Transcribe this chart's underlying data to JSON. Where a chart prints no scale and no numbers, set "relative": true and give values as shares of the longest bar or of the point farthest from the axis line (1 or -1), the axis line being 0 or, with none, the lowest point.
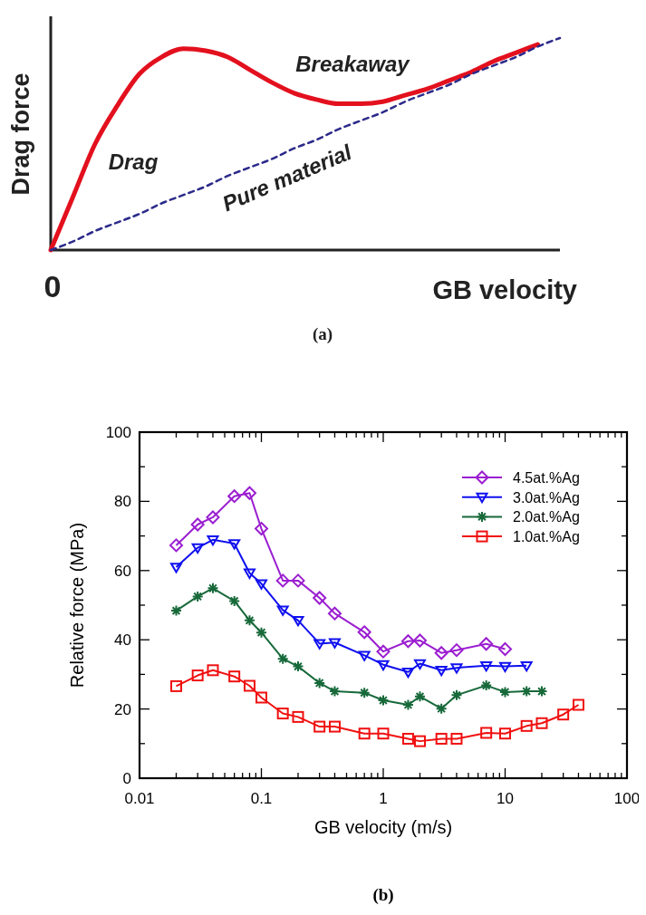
{
  "chart_data": [
    {
      "type": "line",
      "relative": true,
      "ylabel": "Drag force",
      "xlabel": "GB velocity",
      "categories": [
        null,
        null,
        null,
        null,
        null,
        null,
        null,
        null,
        null,
        null,
        null,
        null,
        null,
        null,
        null,
        null,
        null,
        null,
        null,
        null,
        null,
        null,
        null,
        null
      ],
      "series": [
        {
          "color": "#e3101e",
          "line_style": "solid",
          "values": [
            0,
            0.25,
            0.5,
            0.68,
            0.83,
            0.91,
            0.95,
            0.94,
            0.91,
            0.85,
            0.79,
            0.74,
            0.71,
            0.69,
            0.69,
            0.7,
            0.73,
            0.76,
            0.8,
            0.84,
            0.89,
            0.93,
            0.97,
            null
          ]
        },
        {
          "color": "#2b2a8a",
          "line_style": "dashed",
          "values": [
            0,
            0.04,
            0.09,
            0.13,
            0.17,
            0.22,
            0.26,
            0.3,
            0.35,
            0.39,
            0.43,
            0.48,
            0.52,
            0.57,
            0.61,
            0.65,
            0.7,
            0.74,
            0.78,
            0.83,
            0.87,
            0.91,
            0.96,
            1
          ]
        }
      ],
      "annotations": [
        "Drag",
        "Breakaway",
        "Pure material",
        "0",
        "(a)"
      ]
    },
    {
      "type": "line",
      "xlabel": "GB velocity (m/s)",
      "ylabel": "Relative force (MPa)",
      "log": "x",
      "grid": false,
      "legend": "top right",
      "xlim": [
        0.01,
        100
      ],
      "ylim": [
        0,
        100
      ],
      "xticks": [
        0.01,
        {
          "value": 0.02,
          "label": null
        },
        {
          "value": 0.03,
          "label": null
        },
        {
          "value": 0.04,
          "label": null
        },
        {
          "value": 0.05,
          "label": null
        },
        {
          "value": 0.06,
          "label": null
        },
        {
          "value": 0.07,
          "label": null
        },
        {
          "value": 0.08,
          "label": null
        },
        {
          "value": 0.09,
          "label": null
        },
        0.1,
        {
          "value": 0.2,
          "label": null
        },
        {
          "value": 0.3,
          "label": null
        },
        {
          "value": 0.4,
          "label": null
        },
        {
          "value": 0.5,
          "label": null
        },
        {
          "value": 0.6,
          "label": null
        },
        {
          "value": 0.7,
          "label": null
        },
        {
          "value": 0.8,
          "label": null
        },
        {
          "value": 0.9,
          "label": null
        },
        1,
        {
          "value": 2,
          "label": null
        },
        {
          "value": 3,
          "label": null
        },
        {
          "value": 4,
          "label": null
        },
        {
          "value": 5,
          "label": null
        },
        {
          "value": 6,
          "label": null
        },
        {
          "value": 7,
          "label": null
        },
        {
          "value": 8,
          "label": null
        },
        {
          "value": 9,
          "label": null
        },
        10,
        {
          "value": 20,
          "label": null
        },
        {
          "value": 30,
          "label": null
        },
        {
          "value": 40,
          "label": null
        },
        {
          "value": 50,
          "label": null
        },
        {
          "value": 60,
          "label": null
        },
        {
          "value": 70,
          "label": null
        },
        {
          "value": 80,
          "label": null
        },
        {
          "value": 90,
          "label": null
        },
        100
      ],
      "yticks": [
        0,
        {
          "value": 10,
          "label": null
        },
        20,
        {
          "value": 30,
          "label": null
        },
        40,
        {
          "value": 50,
          "label": null
        },
        60,
        {
          "value": 70,
          "label": null
        },
        80,
        {
          "value": 90,
          "label": null
        },
        100
      ],
      "series": [
        {
          "name": "4.5at.%Ag",
          "color": "#9b1ed0",
          "marker": "diamond",
          "x": [
            0.02,
            0.03,
            0.04,
            0.06,
            0.08,
            0.1,
            0.15,
            0.2,
            0.3,
            0.4,
            0.7,
            1,
            1.6,
            2,
            3,
            4,
            7,
            10
          ],
          "values": [
            67.3,
            73.3,
            75.4,
            81.5,
            82.4,
            72.1,
            57.1,
            57.1,
            52.1,
            47.6,
            42.2,
            36.6,
            39.6,
            39.8,
            36.2,
            37.0,
            38.8,
            37.3
          ]
        },
        {
          "name": "3.0at.%Ag",
          "color": "#1010f0",
          "marker": "triangle",
          "x": [
            0.02,
            0.03,
            0.04,
            0.06,
            0.08,
            0.1,
            0.15,
            0.2,
            0.3,
            0.4,
            0.7,
            1,
            1.6,
            2,
            3,
            4,
            7,
            10,
            15
          ],
          "values": [
            61.0,
            66.6,
            68.9,
            67.8,
            59.3,
            56.2,
            48.6,
            45.6,
            38.9,
            39.2,
            35.5,
            32.8,
            30.7,
            33.1,
            31.2,
            31.9,
            32.5,
            32.3,
            32.5
          ]
        },
        {
          "name": "2.0at.%Ag",
          "color": "#17693a",
          "marker": "cross",
          "x": [
            0.02,
            0.03,
            0.04,
            0.06,
            0.08,
            0.1,
            0.15,
            0.2,
            0.3,
            0.4,
            0.7,
            1,
            1.6,
            2,
            3,
            4,
            7,
            10,
            15,
            20
          ],
          "values": [
            48.4,
            52.5,
            54.9,
            51.2,
            45.6,
            42.1,
            34.5,
            32.3,
            27.5,
            25.1,
            24.7,
            22.5,
            21.2,
            23.6,
            20.1,
            24.0,
            26.8,
            24.9,
            25.1,
            25.1
          ]
        },
        {
          "name": "1.0at.%Ag",
          "color": "#f01010",
          "marker": "square",
          "x": [
            0.02,
            0.03,
            0.04,
            0.06,
            0.08,
            0.1,
            0.15,
            0.2,
            0.3,
            0.4,
            0.7,
            1,
            1.6,
            2,
            3,
            4,
            7,
            10,
            15,
            20,
            30,
            40
          ],
          "values": [
            26.6,
            29.7,
            31.2,
            29.4,
            26.7,
            23.3,
            18.7,
            17.7,
            14.9,
            14.9,
            12.9,
            12.9,
            11.4,
            10.7,
            11.4,
            11.4,
            13.1,
            12.9,
            15.1,
            15.9,
            18.4,
            21.2
          ]
        }
      ],
      "annotations": [
        "(b)"
      ]
    }
  ]
}
